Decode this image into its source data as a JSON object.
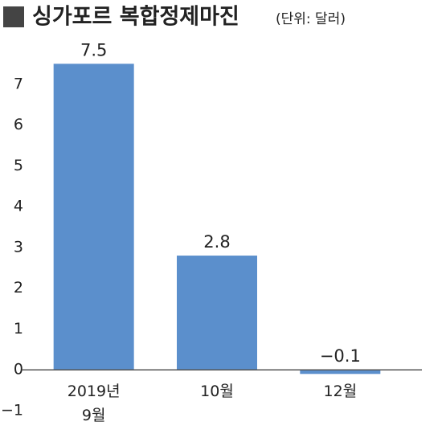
{
  "chart_data": {
    "type": "bar",
    "title": "싱가포르 복합정제마진",
    "subtitle": "(단위: 달러)",
    "categories": [
      "2019년\n9월",
      "10월",
      "12월"
    ],
    "values": [
      7.5,
      2.8,
      -0.1
    ],
    "value_labels": [
      "7.5",
      "2.8",
      "−0.1"
    ],
    "color": "#5b8fcc",
    "ylim": [
      -1,
      8
    ],
    "yticks": [
      {
        "value": -1,
        "label": "−1"
      },
      0,
      1,
      2,
      3,
      4,
      5,
      6,
      7
    ],
    "grid": false
  }
}
